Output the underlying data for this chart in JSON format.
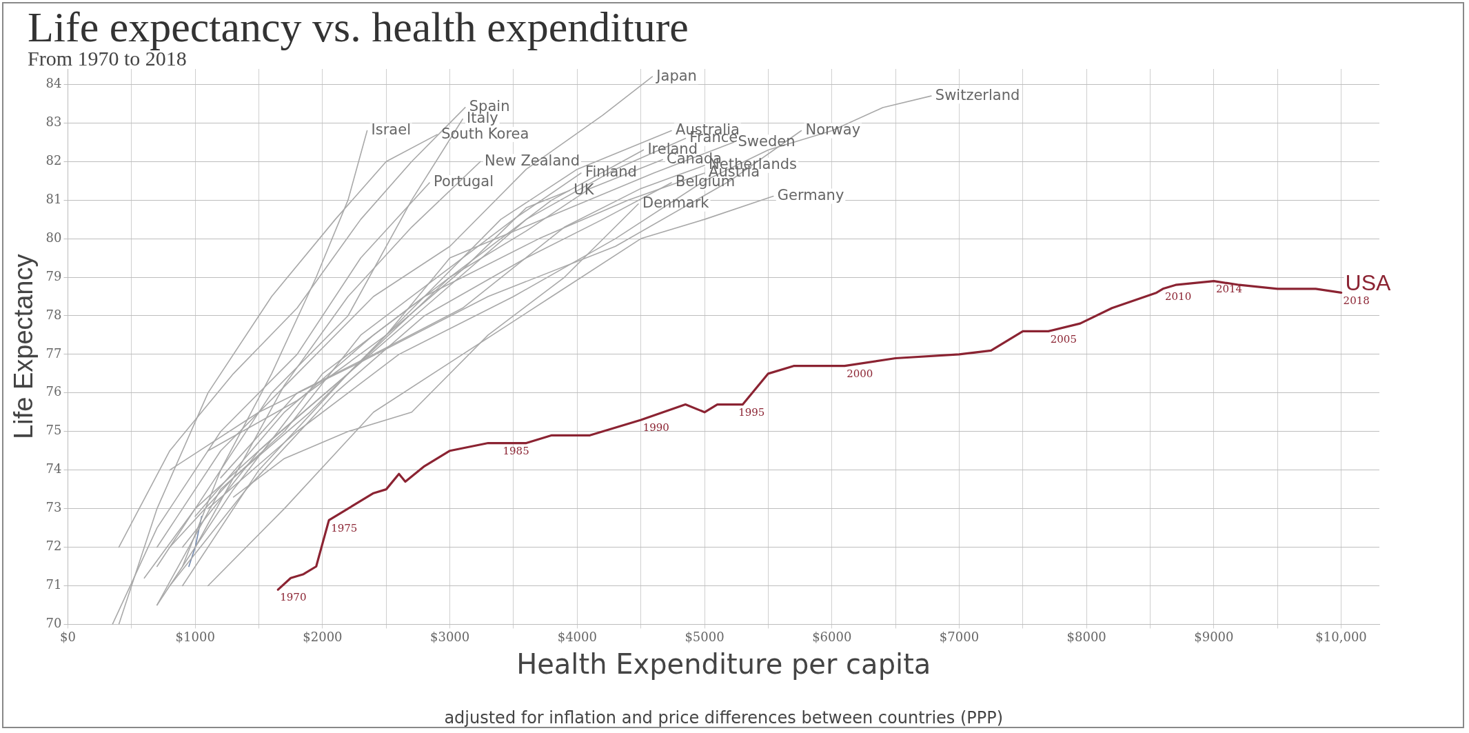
{
  "chart_data": {
    "type": "line",
    "title": "Life expectancy vs. health expenditure",
    "subtitle": "From 1970 to 2018",
    "xlabel": "Health Expenditure per capita",
    "ylabel": "Life Expectancy",
    "annotations": [
      "adjusted for inflation and price differences between countries (PPP)",
      {
        "text": "1970",
        "x": 1650,
        "y": 70.9
      },
      {
        "text": "1975",
        "x": 2050,
        "y": 72.7
      },
      {
        "text": "1985",
        "x": 3400,
        "y": 74.7
      },
      {
        "text": "1990",
        "x": 4500,
        "y": 75.3
      },
      {
        "text": "1995",
        "x": 5250,
        "y": 75.7
      },
      {
        "text": "2000",
        "x": 6100,
        "y": 76.7
      },
      {
        "text": "2005",
        "x": 7700,
        "y": 77.6
      },
      {
        "text": "2010",
        "x": 8600,
        "y": 78.7
      },
      {
        "text": "2014",
        "x": 9000,
        "y": 78.9
      },
      {
        "text": "2018",
        "x": 10000,
        "y": 78.6
      }
    ],
    "xlim": [
      0,
      10300
    ],
    "ylim": [
      70,
      84.4
    ],
    "xticks": [
      {
        "value": 0,
        "label": "$0"
      },
      {
        "value": 500,
        "label": null
      },
      {
        "value": 1000,
        "label": "$1000"
      },
      {
        "value": 1500,
        "label": null
      },
      {
        "value": 2000,
        "label": "$2000"
      },
      {
        "value": 2500,
        "label": null
      },
      {
        "value": 3000,
        "label": "$3000"
      },
      {
        "value": 3500,
        "label": null
      },
      {
        "value": 4000,
        "label": "$4000"
      },
      {
        "value": 4500,
        "label": null
      },
      {
        "value": 5000,
        "label": "$5000"
      },
      {
        "value": 5500,
        "label": null
      },
      {
        "value": 6000,
        "label": "$6000"
      },
      {
        "value": 6500,
        "label": null
      },
      {
        "value": 7000,
        "label": "$7000"
      },
      {
        "value": 7500,
        "label": null
      },
      {
        "value": 8000,
        "label": "$8000"
      },
      {
        "value": 8500,
        "label": null
      },
      {
        "value": 9000,
        "label": "$9000"
      },
      {
        "value": 9500,
        "label": null
      },
      {
        "value": 10000,
        "label": "$10,000"
      }
    ],
    "yticks": [
      70,
      71,
      72,
      73,
      74,
      75,
      76,
      77,
      78,
      79,
      80,
      81,
      82,
      83,
      84
    ],
    "grid": true,
    "legend": false,
    "marker": "none",
    "line_style": "solid",
    "series": [
      {
        "name": "Japan",
        "color": "#a8a8a8",
        "x": [
          700,
          1200,
          1800,
          2400,
          3000,
          3600,
          4200,
          4590
        ],
        "values": [
          72,
          74.5,
          76.5,
          78.5,
          79.8,
          81.8,
          83.2,
          84.2
        ]
      },
      {
        "name": "Switzerland",
        "color": "#a8a8a8",
        "x": [
          1100,
          1800,
          2600,
          3500,
          4300,
          5000,
          5500,
          6000,
          6400,
          6780
        ],
        "values": [
          73,
          75,
          77,
          78.5,
          80,
          81.5,
          82.3,
          82.8,
          83.4,
          83.7
        ]
      },
      {
        "name": "Spain",
        "color": "#a8a8a8",
        "x": [
          400,
          800,
          1300,
          1800,
          2300,
          2700,
          3120
        ],
        "values": [
          72,
          74.5,
          76.5,
          78.2,
          80.5,
          82,
          83.4
        ]
      },
      {
        "name": "Italy",
        "color": "#a8a8a8",
        "x": [
          700,
          1100,
          1600,
          2200,
          2700,
          3100
        ],
        "values": [
          71.5,
          73.5,
          76,
          78,
          81,
          83.1
        ]
      },
      {
        "name": "Israel",
        "color": "#a8a8a8",
        "x": [
          900,
          1200,
          1600,
          1950,
          2200,
          2350
        ],
        "values": [
          71.5,
          74,
          76.5,
          79,
          81,
          82.8
        ]
      },
      {
        "name": "South Korea",
        "color": "#a8a8a8",
        "x": [
          400,
          700,
          1100,
          1600,
          2100,
          2500,
          2900
        ],
        "values": [
          70,
          73,
          76,
          78.5,
          80.5,
          82,
          82.7
        ]
      },
      {
        "name": "Australia",
        "color": "#a8a8a8",
        "x": [
          900,
          1500,
          2200,
          2800,
          3400,
          4000,
          4740
        ],
        "values": [
          71,
          74,
          76.5,
          78.5,
          80.5,
          81.8,
          82.8
        ]
      },
      {
        "name": "France",
        "color": "#a8a8a8",
        "x": [
          900,
          1500,
          2200,
          2900,
          3600,
          4300,
          4850
        ],
        "values": [
          72,
          74.5,
          76.5,
          78.5,
          80.5,
          81.8,
          82.6
        ]
      },
      {
        "name": "Norway",
        "color": "#a8a8a8",
        "x": [
          800,
          1500,
          2300,
          3300,
          4300,
          5200,
          5760
        ],
        "values": [
          74,
          75.5,
          76.8,
          78.5,
          79.8,
          81.5,
          82.8
        ]
      },
      {
        "name": "Sweden",
        "color": "#a8a8a8",
        "x": [
          1100,
          1800,
          2500,
          3000,
          3800,
          4600,
          5230
        ],
        "values": [
          74.5,
          75.8,
          77.5,
          79.5,
          80.6,
          81.7,
          82.5
        ]
      },
      {
        "name": "Ireland",
        "color": "#a8a8a8",
        "x": [
          600,
          1000,
          1600,
          2200,
          3000,
          3800,
          4520
        ],
        "values": [
          71.2,
          73,
          74.8,
          76.5,
          79,
          81,
          82.3
        ]
      },
      {
        "name": "Canada",
        "color": "#a8a8a8",
        "x": [
          1000,
          1700,
          2400,
          3000,
          3600,
          4100,
          4670
        ],
        "values": [
          72.8,
          75.5,
          77.5,
          79,
          80.2,
          81.3,
          82.05
        ]
      },
      {
        "name": "Netherlands",
        "color": "#a8a8a8",
        "x": [
          1200,
          1800,
          2400,
          3100,
          3900,
          4500,
          5000
        ],
        "values": [
          73.8,
          76,
          77,
          78.2,
          80.3,
          81.3,
          81.9
        ]
      },
      {
        "name": "Austria",
        "color": "#a8a8a8",
        "x": [
          700,
          1300,
          2000,
          2800,
          3700,
          4400,
          5000
        ],
        "values": [
          70.5,
          73.5,
          76.5,
          78.5,
          80,
          81,
          81.7
        ]
      },
      {
        "name": "Belgium",
        "color": "#a8a8a8",
        "x": [
          800,
          1400,
          2100,
          2800,
          3600,
          4200,
          4740
        ],
        "values": [
          71,
          73.5,
          76,
          78,
          79.5,
          80.5,
          81.45
        ]
      },
      {
        "name": "Finland",
        "color": "#a8a8a8",
        "x": [
          700,
          1200,
          1700,
          2300,
          2900,
          3500,
          4030
        ],
        "values": [
          70.5,
          73.5,
          75,
          77.5,
          79,
          80.5,
          81.7
        ]
      },
      {
        "name": "New Zealand",
        "color": "#a8a8a8",
        "x": [
          1000,
          1300,
          1700,
          2200,
          2700,
          3240
        ],
        "values": [
          72,
          73.8,
          76.2,
          78.5,
          80.3,
          82.0
        ]
      },
      {
        "name": "Portugal",
        "color": "#a8a8a8",
        "x": [
          350,
          700,
          1200,
          1800,
          2300,
          2840
        ],
        "values": [
          70,
          72.5,
          75,
          77,
          79.5,
          81.45
        ]
      },
      {
        "name": "UK",
        "color": "#a8a8a8",
        "x": [
          800,
          1300,
          1900,
          2500,
          3100,
          3600,
          3940
        ],
        "values": [
          72,
          73.8,
          75.5,
          77.5,
          79.2,
          80.8,
          81.25
        ]
      },
      {
        "name": "Denmark",
        "color": "#a8a8a8",
        "x": [
          1300,
          1700,
          2200,
          2700,
          3300,
          3900,
          4480
        ],
        "values": [
          73.3,
          74.3,
          75,
          75.5,
          77.5,
          79,
          80.9
        ]
      },
      {
        "name": "Germany",
        "color": "#a8a8a8",
        "x": [
          1100,
          1700,
          2400,
          3100,
          3800,
          4500,
          5000,
          5540
        ],
        "values": [
          71,
          73,
          75.5,
          77,
          78.5,
          80,
          80.5,
          81.1
        ]
      },
      {
        "color": "#6f86ad",
        "x": [
          950,
          1000,
          1050
        ],
        "values": [
          71.5,
          72,
          72.8
        ]
      },
      {
        "name": "USA",
        "color": "#8b2332",
        "x": [
          1650,
          1750,
          1850,
          1950,
          2000,
          2050,
          2200,
          2400,
          2500,
          2600,
          2650,
          2800,
          3000,
          3300,
          3600,
          3800,
          4100,
          4500,
          4850,
          5000,
          5100,
          5300,
          5500,
          5700,
          6100,
          6500,
          7000,
          7250,
          7500,
          7700,
          7950,
          8200,
          8550,
          8600,
          8700,
          9000,
          9200,
          9500,
          9800,
          10000
        ],
        "values": [
          70.9,
          71.2,
          71.3,
          71.5,
          72.1,
          72.7,
          73.0,
          73.4,
          73.5,
          73.9,
          73.7,
          74.1,
          74.5,
          74.7,
          74.7,
          74.9,
          74.9,
          75.3,
          75.7,
          75.5,
          75.7,
          75.7,
          76.5,
          76.7,
          76.7,
          76.9,
          77.0,
          77.1,
          77.6,
          77.6,
          77.8,
          78.2,
          78.6,
          78.7,
          78.8,
          78.9,
          78.8,
          78.7,
          78.7,
          78.6
        ]
      }
    ]
  }
}
